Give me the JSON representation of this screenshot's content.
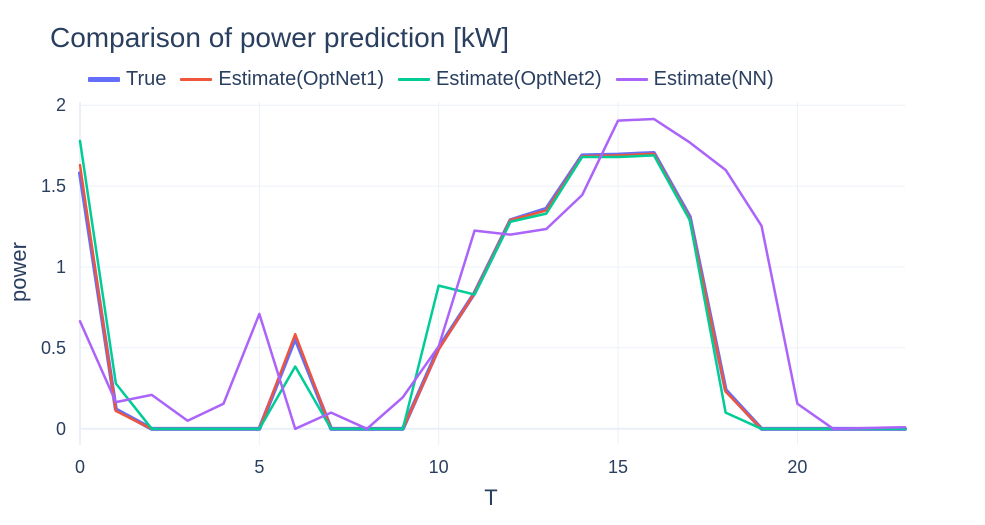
{
  "chart_data": {
    "type": "line",
    "title": "Comparison of power prediction [kW]",
    "xlabel": "T",
    "ylabel": "power",
    "xlim": [
      0,
      23
    ],
    "ylim": [
      -0.1,
      2.02
    ],
    "x_ticks": [
      0,
      5,
      10,
      15,
      20
    ],
    "y_ticks": [
      0,
      0.5,
      1,
      1.5,
      2
    ],
    "x_tick_labels": [
      "0",
      "5",
      "10",
      "15",
      "20"
    ],
    "y_tick_labels": [
      "0",
      "0.5",
      "1",
      "1.5",
      "2"
    ],
    "grid": true,
    "legend_position": "top-left, horizontal",
    "x": [
      0,
      1,
      2,
      3,
      4,
      5,
      6,
      7,
      8,
      9,
      10,
      11,
      12,
      13,
      14,
      15,
      16,
      17,
      18,
      19,
      20,
      21,
      22,
      23
    ],
    "series": [
      {
        "name": "True",
        "color": "#636efa",
        "width": 4,
        "values": [
          1.58,
          0.12,
          0.0,
          0.0,
          0.0,
          0.0,
          0.56,
          0.0,
          0.0,
          0.0,
          0.5,
          0.84,
          1.29,
          1.36,
          1.69,
          1.695,
          1.705,
          1.31,
          0.24,
          0.0,
          0.0,
          0.0,
          0.0,
          0.0
        ]
      },
      {
        "name": "Estimate(OptNet1)",
        "color": "#ef553b",
        "width": 2.5,
        "values": [
          1.63,
          0.11,
          0.0,
          0.0,
          0.0,
          0.0,
          0.585,
          0.0,
          0.0,
          0.0,
          0.49,
          0.84,
          1.29,
          1.35,
          1.685,
          1.69,
          1.7,
          1.3,
          0.23,
          0.0,
          0.0,
          0.0,
          0.0,
          0.0
        ]
      },
      {
        "name": "Estimate(OptNet2)",
        "color": "#00cc96",
        "width": 2.5,
        "values": [
          1.78,
          0.28,
          0.0,
          0.0,
          0.0,
          0.0,
          0.385,
          0.0,
          0.0,
          0.0,
          0.885,
          0.83,
          1.28,
          1.33,
          1.68,
          1.68,
          1.69,
          1.29,
          0.1,
          0.0,
          0.0,
          0.0,
          0.0,
          0.0
        ]
      },
      {
        "name": "Estimate(NN)",
        "color": "#ab63fa",
        "width": 2.5,
        "values": [
          0.665,
          0.165,
          0.21,
          0.05,
          0.155,
          0.71,
          0.0,
          0.1,
          0.0,
          0.195,
          0.51,
          1.225,
          1.2,
          1.235,
          1.445,
          1.905,
          1.915,
          1.77,
          1.6,
          1.255,
          0.155,
          0.0,
          0.005,
          0.01
        ]
      }
    ]
  }
}
